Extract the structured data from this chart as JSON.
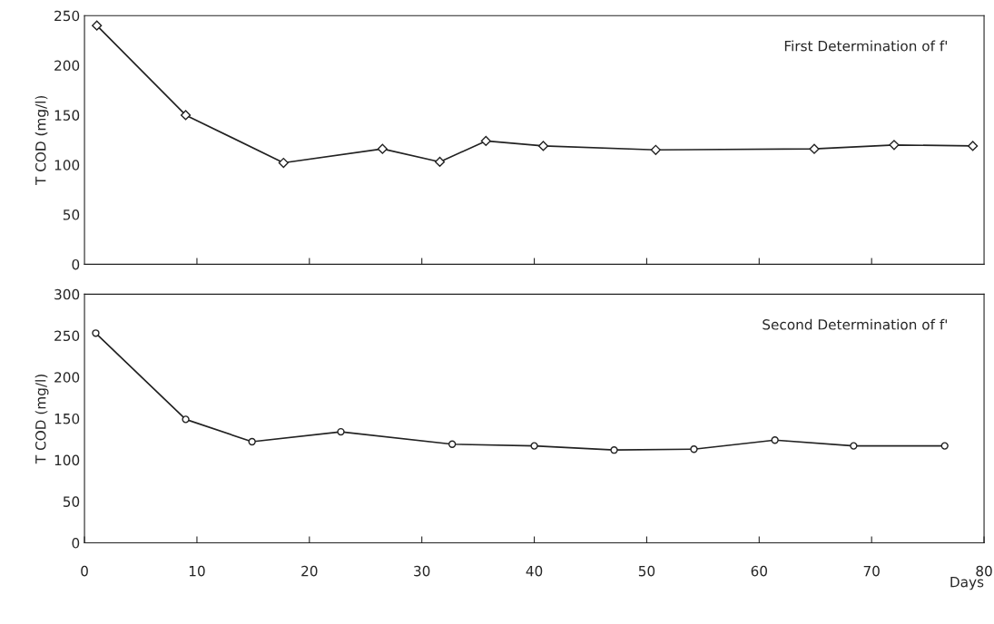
{
  "chart_data": [
    {
      "type": "line",
      "ylabel": "T COD (mg/l)",
      "annotations": [
        "First Determination of f'"
      ],
      "marker": "diamond",
      "tick_labels": "y",
      "grid": false,
      "legend": false,
      "xlim": [
        0,
        80
      ],
      "xticks": [
        {
          "value": 10,
          "label": null
        },
        {
          "value": 20,
          "label": null
        },
        {
          "value": 30,
          "label": null
        },
        {
          "value": 40,
          "label": null
        },
        {
          "value": 50,
          "label": null
        },
        {
          "value": 60,
          "label": null
        },
        {
          "value": 70,
          "label": null
        }
      ],
      "ylim": [
        0,
        250
      ],
      "yticks": [
        0,
        50,
        100,
        150,
        200,
        250
      ],
      "series": [
        {
          "color": "#222222",
          "x": [
            1.1,
            9.0,
            17.7,
            26.5,
            31.6,
            35.7,
            40.8,
            50.8,
            64.9,
            72.0,
            79.0
          ],
          "values": [
            240,
            150,
            102,
            116,
            103,
            124,
            119,
            115,
            116,
            120,
            119
          ]
        }
      ]
    },
    {
      "type": "line",
      "ylabel": "T COD (mg/l)",
      "xlabel": "Days",
      "annotations": [
        "Second Determination of f'"
      ],
      "marker": "circle",
      "grid": false,
      "legend": false,
      "xlim": [
        0,
        80
      ],
      "xticks": [
        0,
        10,
        20,
        30,
        40,
        50,
        60,
        70,
        80
      ],
      "ylim": [
        0,
        300
      ],
      "yticks": [
        0,
        50,
        100,
        150,
        200,
        250,
        300
      ],
      "series": [
        {
          "color": "#222222",
          "x": [
            1.0,
            9.0,
            14.9,
            22.8,
            32.7,
            40.0,
            47.1,
            54.2,
            61.4,
            68.4,
            76.5
          ],
          "values": [
            253,
            149,
            122,
            134,
            119,
            117,
            112,
            113,
            124,
            117,
            117
          ]
        }
      ]
    }
  ]
}
